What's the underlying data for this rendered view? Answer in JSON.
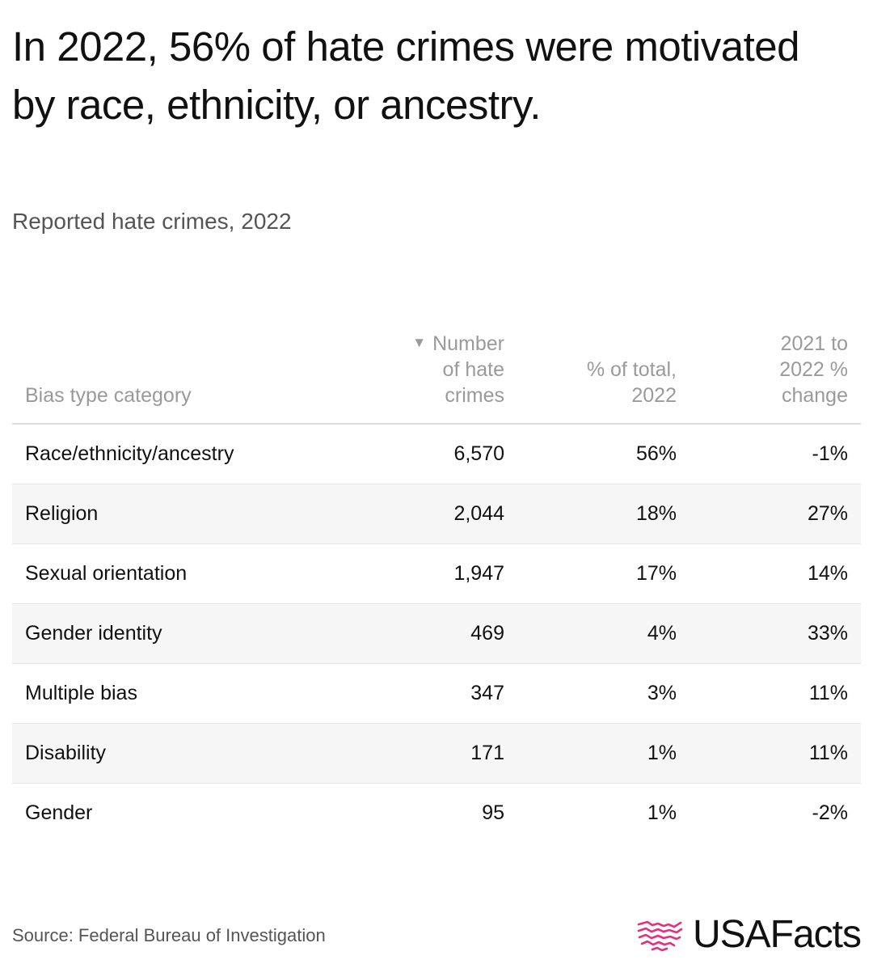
{
  "title": "In 2022, 56% of hate crimes were motivated by race, ethnicity, or ancestry.",
  "subtitle": "Reported hate crimes, 2022",
  "chart_data": {
    "type": "table",
    "title": "In 2022, 56% of hate crimes were motivated by race, ethnicity, or ancestry.",
    "subtitle": "Reported hate crimes, 2022",
    "sorted_by": "Number of hate crimes",
    "sort_direction": "descending",
    "columns": [
      "Bias type category",
      "Number of hate crimes",
      "% of total, 2022",
      "2021 to 2022 % change"
    ],
    "rows": [
      {
        "category": "Race/ethnicity/ancestry",
        "count": "6,570",
        "pct_total": "56%",
        "pct_change": "-1%"
      },
      {
        "category": "Religion",
        "count": "2,044",
        "pct_total": "18%",
        "pct_change": "27%"
      },
      {
        "category": "Sexual orientation",
        "count": "1,947",
        "pct_total": "17%",
        "pct_change": "14%"
      },
      {
        "category": "Gender identity",
        "count": "469",
        "pct_total": "4%",
        "pct_change": "33%"
      },
      {
        "category": "Multiple bias",
        "count": "347",
        "pct_total": "3%",
        "pct_change": "11%"
      },
      {
        "category": "Disability",
        "count": "171",
        "pct_total": "1%",
        "pct_change": "11%"
      },
      {
        "category": "Gender",
        "count": "95",
        "pct_total": "1%",
        "pct_change": "-2%"
      }
    ],
    "values": {
      "count": [
        6570,
        2044,
        1947,
        469,
        347,
        171,
        95
      ],
      "pct_total": [
        56,
        18,
        17,
        4,
        3,
        1,
        1
      ],
      "pct_change": [
        -1,
        27,
        14,
        33,
        11,
        11,
        -2
      ]
    }
  },
  "headers": {
    "category": "Bias type category",
    "count_line1": "Number",
    "count_line2": "of hate",
    "count_line3": "crimes",
    "pct_line1": "% of total,",
    "pct_line2": "2022",
    "change_line1": "2021 to",
    "change_line2": "2022 %",
    "change_line3": "change",
    "sort_icon": "sort-descending-icon"
  },
  "footer": {
    "source": "Source: Federal Bureau of Investigation",
    "brand": "USAFacts"
  },
  "colors": {
    "brand_accent": "#e5307e",
    "row_stripe": "#f6f6f6",
    "header_text": "#9a9a9a"
  }
}
